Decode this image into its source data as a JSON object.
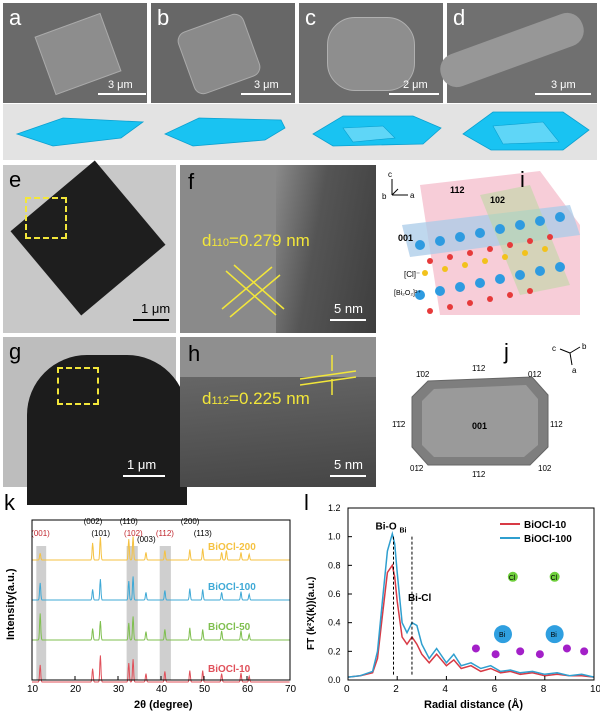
{
  "panels": {
    "a": {
      "label": "a",
      "scale": "3 μm"
    },
    "b": {
      "label": "b",
      "scale": "3 μm"
    },
    "c": {
      "label": "c",
      "scale": "2 μm"
    },
    "d": {
      "label": "d",
      "scale": "3 μm"
    },
    "e": {
      "label": "e",
      "scale": "1 μm"
    },
    "f": {
      "label": "f",
      "scale": "5 nm",
      "d_prefix": "d",
      "d_sub": "110",
      "d_value": "=0.279 nm"
    },
    "g": {
      "label": "g",
      "scale": "1 μm"
    },
    "h": {
      "label": "h",
      "scale": "5 nm",
      "d_prefix": "d",
      "d_sub": "112",
      "d_value": "=0.225 nm"
    },
    "i": {
      "label": "i",
      "axes": [
        "c",
        "b",
        "a"
      ],
      "planes": [
        "112",
        "102",
        "001"
      ],
      "layers": [
        "[Cl]⁻",
        "[Bi₂O₂]²⁺"
      ]
    },
    "j": {
      "label": "j",
      "axes": [
        "c",
        "b",
        "a"
      ],
      "center": "001",
      "facets": [
        "1̄02",
        "1̄12",
        "012",
        "112",
        "102",
        "1̄12",
        "01̄2",
        "1̄1̄2"
      ]
    },
    "k": {
      "label": "k"
    },
    "l": {
      "label": "l",
      "annotations": [
        "Bi-O",
        "Bi",
        "Bi-Cl"
      ],
      "atom_labels": [
        "Cl",
        "Cl",
        "Bi",
        "Bi"
      ]
    }
  },
  "chart_data": [
    {
      "type": "line",
      "id": "k",
      "xlabel": "2θ (degree)",
      "ylabel": "Intensity(a.u.)",
      "xlim": [
        10,
        70
      ],
      "xticks": [
        10,
        20,
        30,
        40,
        50,
        60,
        70
      ],
      "series": [
        {
          "name": "BiOCl-200",
          "color": "#f5c242",
          "peaks": [
            [
              11.9,
              0.18
            ],
            [
              24.1,
              0.45
            ],
            [
              25.9,
              0.6
            ],
            [
              32.5,
              0.55
            ],
            [
              33.5,
              0.62
            ],
            [
              36.5,
              0.2
            ],
            [
              40.9,
              0.25
            ],
            [
              46.7,
              0.28
            ],
            [
              49.7,
              0.3
            ],
            [
              54.1,
              0.2
            ],
            [
              55.2,
              0.25
            ],
            [
              58.6,
              0.2
            ],
            [
              60.5,
              0.15
            ]
          ]
        },
        {
          "name": "BiOCl-100",
          "color": "#3fa9d6",
          "peaks": [
            [
              11.9,
              0.45
            ],
            [
              24.1,
              0.28
            ],
            [
              25.9,
              0.55
            ],
            [
              32.5,
              0.5
            ],
            [
              33.5,
              0.62
            ],
            [
              36.5,
              0.2
            ],
            [
              40.9,
              0.25
            ],
            [
              46.7,
              0.3
            ],
            [
              49.7,
              0.28
            ],
            [
              54.1,
              0.2
            ],
            [
              58.6,
              0.22
            ],
            [
              60.5,
              0.15
            ]
          ]
        },
        {
          "name": "BiOCl-50",
          "color": "#7fbf4f",
          "peaks": [
            [
              11.9,
              0.7
            ],
            [
              24.1,
              0.3
            ],
            [
              25.9,
              0.5
            ],
            [
              32.5,
              0.45
            ],
            [
              33.5,
              0.62
            ],
            [
              36.5,
              0.22
            ],
            [
              40.9,
              0.28
            ],
            [
              46.7,
              0.32
            ],
            [
              49.7,
              0.28
            ],
            [
              54.1,
              0.24
            ],
            [
              58.6,
              0.25
            ],
            [
              60.5,
              0.15
            ]
          ]
        },
        {
          "name": "BiOCl-10",
          "color": "#e0505a",
          "peaks": [
            [
              11.9,
              0.45
            ],
            [
              24.1,
              0.35
            ],
            [
              25.9,
              0.7
            ],
            [
              32.5,
              0.5
            ],
            [
              33.5,
              0.6
            ],
            [
              36.5,
              0.22
            ],
            [
              40.9,
              0.28
            ],
            [
              46.7,
              0.3
            ],
            [
              49.7,
              0.3
            ],
            [
              54.1,
              0.22
            ],
            [
              58.6,
              0.24
            ],
            [
              60.5,
              0.15
            ]
          ]
        }
      ],
      "peak_labels": [
        {
          "x": 11.9,
          "text": "(001)",
          "color": "#c0262d"
        },
        {
          "x": 24.1,
          "text": "(002)",
          "color": "#000000"
        },
        {
          "x": 25.9,
          "text": "(101)",
          "color": "#000000"
        },
        {
          "x": 32.5,
          "text": "(110)",
          "color": "#000000"
        },
        {
          "x": 33.5,
          "text": "(102)",
          "color": "#c0262d"
        },
        {
          "x": 36.5,
          "text": "(003)",
          "color": "#000000"
        },
        {
          "x": 40.9,
          "text": "(112)",
          "color": "#c0262d"
        },
        {
          "x": 46.7,
          "text": "(200)",
          "color": "#000000"
        },
        {
          "x": 49.7,
          "text": "(113)",
          "color": "#000000"
        }
      ],
      "shaded_ranges": [
        [
          11,
          13.3
        ],
        [
          32,
          34.6
        ],
        [
          39.7,
          42.3
        ]
      ]
    },
    {
      "type": "line",
      "id": "l",
      "xlabel": "Radial distance (Å)",
      "ylabel": "FT (k²X(k))(a.u.)",
      "xlim": [
        0,
        10
      ],
      "ylim": [
        0,
        1.2
      ],
      "xticks": [
        0,
        2,
        4,
        6,
        8,
        10
      ],
      "yticks": [
        0.0,
        0.2,
        0.4,
        0.6,
        0.8,
        1.0,
        1.2
      ],
      "series": [
        {
          "name": "BiOCl-10",
          "color": "#d83a45",
          "x": [
            0,
            0.5,
            1.0,
            1.2,
            1.4,
            1.6,
            1.8,
            1.9,
            2.0,
            2.2,
            2.4,
            2.6,
            2.8,
            3.0,
            3.3,
            3.6,
            4.0,
            4.3,
            4.6,
            5.0,
            5.4,
            5.8,
            6.2,
            6.6,
            7.0,
            7.5,
            8.0,
            8.5,
            9.0,
            9.5,
            10
          ],
          "y": [
            0.02,
            0.03,
            0.05,
            0.15,
            0.45,
            0.75,
            0.8,
            0.72,
            0.55,
            0.3,
            0.25,
            0.3,
            0.25,
            0.18,
            0.12,
            0.18,
            0.1,
            0.14,
            0.08,
            0.1,
            0.06,
            0.08,
            0.05,
            0.06,
            0.04,
            0.05,
            0.03,
            0.04,
            0.03,
            0.03,
            0.02
          ]
        },
        {
          "name": "BiOCl-100",
          "color": "#2f9fcf",
          "x": [
            0,
            0.5,
            1.0,
            1.2,
            1.4,
            1.6,
            1.8,
            1.9,
            2.0,
            2.2,
            2.4,
            2.6,
            2.8,
            3.0,
            3.3,
            3.6,
            4.0,
            4.3,
            4.6,
            5.0,
            5.4,
            5.8,
            6.2,
            6.6,
            7.0,
            7.5,
            8.0,
            8.5,
            9.0,
            9.5,
            10
          ],
          "y": [
            0.02,
            0.03,
            0.06,
            0.2,
            0.55,
            0.9,
            1.02,
            0.95,
            0.75,
            0.4,
            0.33,
            0.4,
            0.38,
            0.25,
            0.15,
            0.22,
            0.12,
            0.18,
            0.1,
            0.12,
            0.08,
            0.1,
            0.06,
            0.07,
            0.05,
            0.06,
            0.04,
            0.05,
            0.03,
            0.04,
            0.02
          ]
        }
      ],
      "markers": [
        {
          "x": 1.85,
          "label": "Bi-O"
        },
        {
          "x": 2.6,
          "label": "Bi-Cl"
        }
      ]
    }
  ]
}
